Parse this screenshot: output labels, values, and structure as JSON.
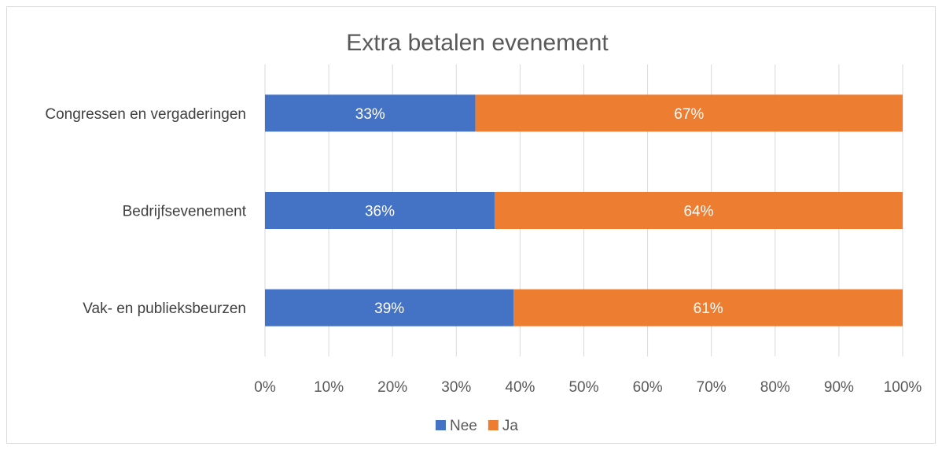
{
  "chart_data": {
    "type": "bar",
    "orientation": "horizontal",
    "stacked": "percent",
    "title": "Extra betalen evenement",
    "categories": [
      "Congressen en vergaderingen",
      "Bedrijfsevenement",
      "Vak- en publieksbeurzen"
    ],
    "series": [
      {
        "name": "Nee",
        "values": [
          33,
          36,
          39
        ],
        "labels": [
          "33%",
          "36%",
          "39%"
        ],
        "color": "#4472c4"
      },
      {
        "name": "Ja",
        "values": [
          67,
          64,
          61
        ],
        "labels": [
          "67%",
          "64%",
          "61%"
        ],
        "color": "#ed7d31"
      }
    ],
    "xlim": [
      0,
      100
    ],
    "xticks": [
      "0%",
      "10%",
      "20%",
      "30%",
      "40%",
      "50%",
      "60%",
      "70%",
      "80%",
      "90%",
      "100%"
    ],
    "grid": true,
    "legend": "bottom"
  }
}
